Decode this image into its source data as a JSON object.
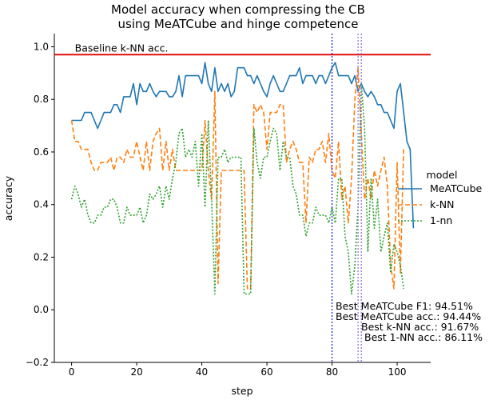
{
  "chart_data": {
    "type": "line",
    "title_lines": [
      "Model accuracy when compressing the CB",
      "using MeATCube and hinge competence"
    ],
    "xlabel": "step",
    "ylabel": "accuracy",
    "xlim": [
      -5.3,
      110.3
    ],
    "ylim": [
      -0.2,
      1.05
    ],
    "xticks": [
      0,
      20,
      40,
      60,
      80,
      100
    ],
    "yticks": [
      -0.2,
      0.0,
      0.2,
      0.4,
      0.6,
      0.8,
      1.0
    ],
    "ytick_labels": [
      "−0.2",
      "0.0",
      "0.2",
      "0.4",
      "0.6",
      "0.8",
      "1.0"
    ],
    "grid": false,
    "legend": {
      "title": "model",
      "placement": "right, outside plot",
      "entries": [
        {
          "label": "MeATCube",
          "color": "#1f77b4",
          "style": "solid"
        },
        {
          "label": "k-NN",
          "color": "#ff7f0e",
          "style": "dashed"
        },
        {
          "label": "1-nn",
          "color": "#2ca02c",
          "style": "dotted"
        }
      ]
    },
    "baseline": {
      "y": 0.97,
      "color": "#e00000",
      "label": "Baseline k-NN acc."
    },
    "vlines": [
      {
        "x": 80,
        "color": "#3030e0"
      },
      {
        "x": 88,
        "color": "#9b7fe0"
      },
      {
        "x": 89,
        "color": "#9b7fe0"
      }
    ],
    "annotations": [
      "Best MeATCube F1: 94.51%",
      "Best MeATCube acc.: 94.44%",
      "Best k-NN acc.: 91.67%",
      "Best 1-NN acc.: 86.11%"
    ],
    "series": [
      {
        "name": "MeATCube",
        "color": "#1f77b4",
        "dash": "",
        "x": [
          0,
          1,
          2,
          3,
          4,
          5,
          6,
          7,
          8,
          9,
          10,
          11,
          12,
          13,
          14,
          15,
          16,
          17,
          18,
          19,
          20,
          21,
          22,
          23,
          24,
          25,
          26,
          27,
          28,
          29,
          30,
          31,
          32,
          33,
          34,
          35,
          36,
          37,
          38,
          39,
          40,
          41,
          42,
          43,
          44,
          45,
          46,
          47,
          48,
          49,
          50,
          51,
          52,
          53,
          54,
          55,
          56,
          57,
          58,
          59,
          60,
          61,
          62,
          63,
          64,
          65,
          66,
          67,
          68,
          69,
          70,
          71,
          72,
          73,
          74,
          75,
          76,
          77,
          78,
          79,
          80,
          81,
          82,
          83,
          84,
          85,
          86,
          87,
          88,
          89,
          90,
          91,
          92,
          93,
          94,
          95,
          96,
          97,
          98,
          99,
          100,
          101,
          102,
          103,
          104,
          105
        ],
        "y": [
          0.72,
          0.72,
          0.72,
          0.72,
          0.75,
          0.75,
          0.75,
          0.72,
          0.69,
          0.72,
          0.75,
          0.75,
          0.75,
          0.78,
          0.78,
          0.75,
          0.81,
          0.81,
          0.81,
          0.86,
          0.78,
          0.86,
          0.83,
          0.83,
          0.86,
          0.83,
          0.81,
          0.83,
          0.83,
          0.83,
          0.81,
          0.81,
          0.83,
          0.89,
          0.81,
          0.89,
          0.89,
          0.89,
          0.89,
          0.89,
          0.86,
          0.94,
          0.86,
          0.83,
          0.92,
          0.83,
          0.86,
          0.83,
          0.86,
          0.81,
          0.83,
          0.92,
          0.92,
          0.92,
          0.89,
          0.89,
          0.86,
          0.89,
          0.86,
          0.83,
          0.81,
          0.86,
          0.89,
          0.86,
          0.83,
          0.83,
          0.86,
          0.89,
          0.89,
          0.89,
          0.92,
          0.86,
          0.89,
          0.89,
          0.89,
          0.86,
          0.89,
          0.89,
          0.86,
          0.89,
          0.92,
          0.94,
          0.89,
          0.89,
          0.89,
          0.89,
          0.86,
          0.89,
          0.83,
          0.86,
          0.83,
          0.81,
          0.83,
          0.81,
          0.78,
          0.78,
          0.75,
          0.75,
          0.72,
          0.69,
          0.83,
          0.86,
          0.75,
          0.64,
          0.61,
          0.31
        ]
      },
      {
        "name": "k-NN",
        "color": "#ff7f0e",
        "dash": "6,3",
        "x": [
          0,
          1,
          2,
          3,
          4,
          5,
          6,
          7,
          8,
          9,
          10,
          11,
          12,
          13,
          14,
          15,
          16,
          17,
          18,
          19,
          20,
          21,
          22,
          23,
          24,
          25,
          26,
          27,
          28,
          29,
          30,
          31,
          32,
          33,
          34,
          35,
          36,
          37,
          38,
          39,
          40,
          41,
          42,
          43,
          44,
          45,
          46,
          47,
          48,
          49,
          50,
          51,
          52,
          53,
          54,
          55,
          56,
          57,
          58,
          59,
          60,
          61,
          62,
          63,
          64,
          65,
          66,
          67,
          68,
          69,
          70,
          71,
          72,
          73,
          74,
          75,
          76,
          77,
          78,
          79,
          80,
          81,
          82,
          83,
          84,
          85,
          86,
          87,
          88,
          89,
          90,
          91,
          92,
          93,
          94,
          95,
          96,
          97,
          98,
          99,
          100,
          101,
          102
        ],
        "y": [
          0.72,
          0.64,
          0.64,
          0.61,
          0.61,
          0.61,
          0.56,
          0.53,
          0.53,
          0.56,
          0.56,
          0.56,
          0.58,
          0.53,
          0.58,
          0.58,
          0.56,
          0.61,
          0.58,
          0.58,
          0.64,
          0.58,
          0.53,
          0.64,
          0.53,
          0.64,
          0.67,
          0.69,
          0.53,
          0.64,
          0.53,
          0.61,
          0.53,
          0.53,
          0.53,
          0.53,
          0.53,
          0.53,
          0.53,
          0.53,
          0.53,
          0.72,
          0.53,
          0.42,
          0.83,
          0.1,
          0.53,
          0.53,
          0.53,
          0.53,
          0.53,
          0.53,
          0.53,
          0.53,
          0.08,
          0.08,
          0.78,
          0.75,
          0.78,
          0.75,
          0.61,
          0.75,
          0.75,
          0.75,
          0.78,
          0.78,
          0.56,
          0.61,
          0.64,
          0.61,
          0.56,
          0.56,
          0.33,
          0.58,
          0.56,
          0.61,
          0.61,
          0.64,
          0.56,
          0.67,
          0.53,
          0.5,
          0.64,
          0.42,
          0.47,
          0.33,
          0.5,
          0.8,
          0.92,
          0.67,
          0.42,
          0.5,
          0.42,
          0.53,
          0.47,
          0.53,
          0.58,
          0.47,
          0.17,
          0.08,
          0.56,
          0.14,
          0.61
        ]
      },
      {
        "name": "1-nn",
        "color": "#2ca02c",
        "dash": "2,2",
        "x": [
          0,
          1,
          2,
          3,
          4,
          5,
          6,
          7,
          8,
          9,
          10,
          11,
          12,
          13,
          14,
          15,
          16,
          17,
          18,
          19,
          20,
          21,
          22,
          23,
          24,
          25,
          26,
          27,
          28,
          29,
          30,
          31,
          32,
          33,
          34,
          35,
          36,
          37,
          38,
          39,
          40,
          41,
          42,
          43,
          44,
          45,
          46,
          47,
          48,
          49,
          50,
          51,
          52,
          53,
          54,
          55,
          56,
          57,
          58,
          59,
          60,
          61,
          62,
          63,
          64,
          65,
          66,
          67,
          68,
          69,
          70,
          71,
          72,
          73,
          74,
          75,
          76,
          77,
          78,
          79,
          80,
          81,
          82,
          83,
          84,
          85,
          86,
          87,
          88,
          89,
          90,
          91,
          92,
          93,
          94,
          95,
          96,
          97,
          98,
          99,
          100,
          101,
          102
        ],
        "y": [
          0.42,
          0.47,
          0.44,
          0.39,
          0.42,
          0.36,
          0.33,
          0.33,
          0.36,
          0.36,
          0.39,
          0.39,
          0.42,
          0.42,
          0.39,
          0.33,
          0.33,
          0.39,
          0.36,
          0.36,
          0.36,
          0.39,
          0.33,
          0.36,
          0.44,
          0.42,
          0.44,
          0.47,
          0.39,
          0.47,
          0.42,
          0.5,
          0.56,
          0.67,
          0.69,
          0.58,
          0.61,
          0.58,
          0.64,
          0.47,
          0.67,
          0.39,
          0.72,
          0.42,
          0.06,
          0.58,
          0.58,
          0.61,
          0.56,
          0.58,
          0.58,
          0.58,
          0.58,
          0.06,
          0.06,
          0.06,
          0.69,
          0.56,
          0.5,
          0.58,
          0.58,
          0.64,
          0.69,
          0.67,
          0.53,
          0.64,
          0.58,
          0.58,
          0.47,
          0.44,
          0.36,
          0.36,
          0.28,
          0.33,
          0.33,
          0.39,
          0.36,
          0.36,
          0.36,
          0.33,
          0.39,
          0.33,
          0.5,
          0.5,
          0.28,
          0.22,
          0.06,
          0.17,
          0.39,
          0.86,
          0.69,
          0.22,
          0.5,
          0.31,
          0.42,
          0.22,
          0.28,
          0.33,
          0.14,
          0.25,
          0.22,
          0.17,
          0.08
        ]
      }
    ]
  }
}
